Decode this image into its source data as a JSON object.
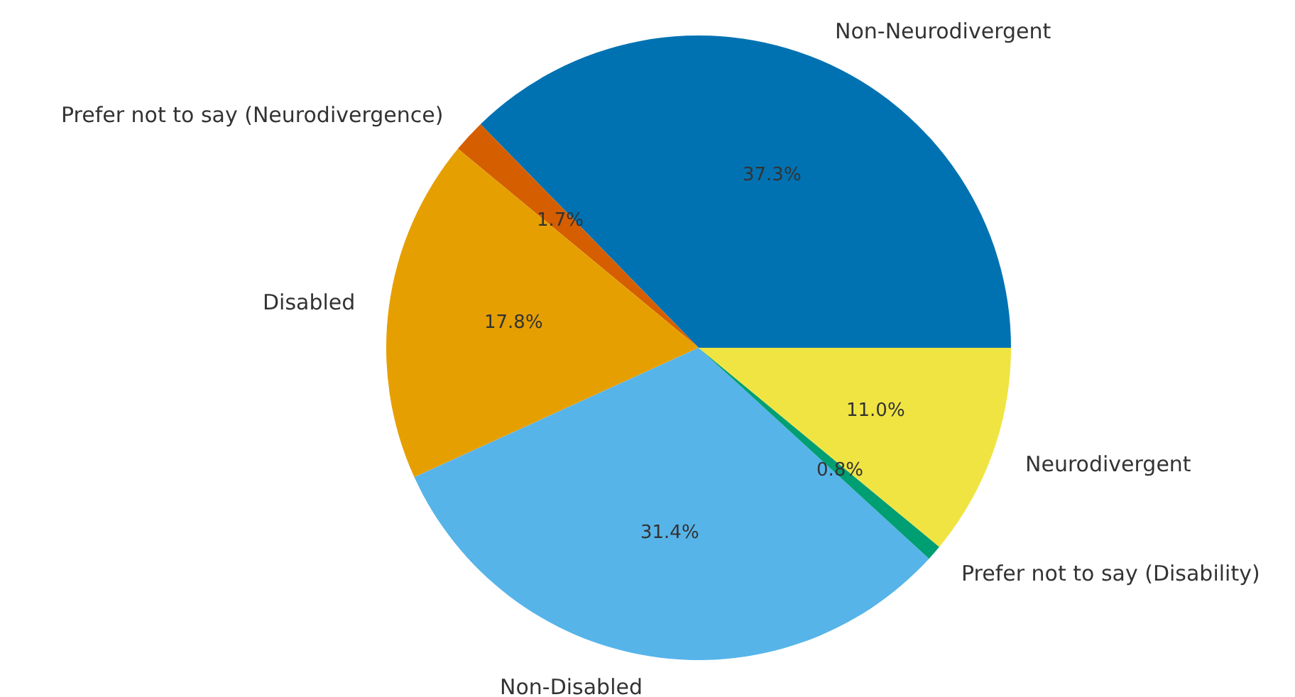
{
  "chart_data": {
    "type": "pie",
    "categories": [
      "Non-Neurodivergent",
      "Prefer not to say (Neurodivergence)",
      "Disabled",
      "Non-Disabled",
      "Prefer not to say (Disability)",
      "Neurodivergent"
    ],
    "values": [
      37.3,
      1.7,
      17.8,
      31.4,
      0.8,
      11.0
    ],
    "colors": [
      "#0072b2",
      "#d55e00",
      "#e69f00",
      "#56b4e9",
      "#009e73",
      "#f0e442"
    ],
    "value_labels": [
      "37.3%",
      "1.7%",
      "17.8%",
      "31.4%",
      "0.8%",
      "11.0%"
    ],
    "legend": false
  }
}
